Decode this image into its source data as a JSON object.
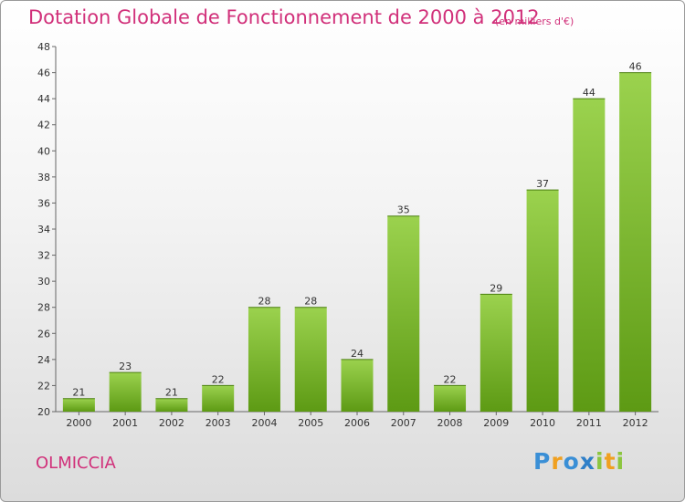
{
  "title": "Dotation Globale de Fonctionnement de 2000 à 2012",
  "unit": "(en milliers d'€)",
  "place": "OLMICCIA",
  "logo": {
    "p": "P",
    "r": "r",
    "o": "o",
    "x": "x",
    "i": "i",
    "t": "t",
    "i2": "i"
  },
  "colors": {
    "bar_light": "#9bd24e",
    "bar_dark": "#5d9a14",
    "title": "#d1307a"
  },
  "chart_data": {
    "type": "bar",
    "title": "Dotation Globale de Fonctionnement de 2000 à 2012",
    "subtitle": "(en milliers d'€)",
    "categories": [
      "2000",
      "2001",
      "2002",
      "2003",
      "2004",
      "2005",
      "2006",
      "2007",
      "2008",
      "2009",
      "2010",
      "2011",
      "2012"
    ],
    "values": [
      21,
      23,
      21,
      22,
      28,
      28,
      24,
      35,
      22,
      29,
      37,
      44,
      46
    ],
    "ylim": [
      20,
      48
    ],
    "yticks": [
      20,
      22,
      24,
      26,
      28,
      30,
      32,
      34,
      36,
      38,
      40,
      42,
      44,
      46,
      48
    ],
    "grid": false,
    "legend": "none"
  }
}
